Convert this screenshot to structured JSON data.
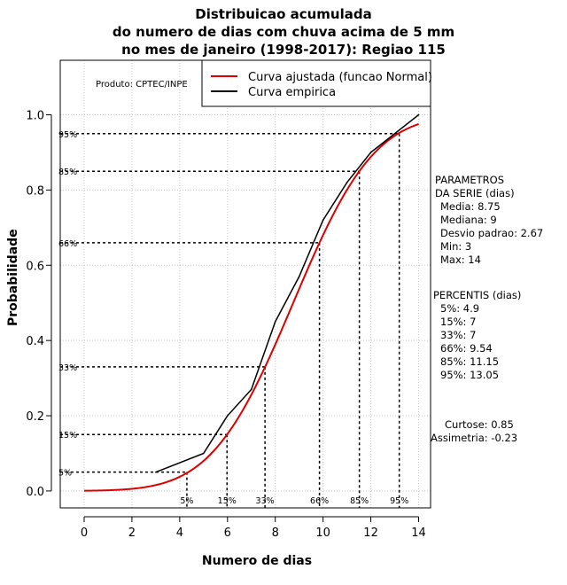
{
  "chart_data": {
    "type": "line",
    "title_lines": [
      "Distribuicao acumulada",
      "do numero de dias com chuva acima de 5 mm",
      "no mes de janeiro (1998-2017): Regiao 115"
    ],
    "xlabel": "Numero de dias",
    "ylabel": "Probabilidade",
    "xlim": [
      -1,
      14.5
    ],
    "ylim": [
      -0.045,
      1.145
    ],
    "x_ticks": [
      0,
      2,
      4,
      6,
      8,
      10,
      12,
      14
    ],
    "y_ticks": [
      0.0,
      0.2,
      0.4,
      0.6,
      0.8,
      1.0
    ],
    "y_tick_labels": [
      "0.0",
      "0.2",
      "0.4",
      "0.6",
      "0.8",
      "1.0"
    ],
    "grid": true,
    "produto": "Produto: CPTEC/INPE",
    "legend": {
      "position": "top-right",
      "entries": [
        {
          "label": "Curva ajustada (funcao Normal)",
          "color": "#dd0000"
        },
        {
          "label": "Curva empirica",
          "color": "#000000"
        }
      ]
    },
    "normal_fit": {
      "mean": 8.75,
      "sd": 2.67,
      "x_from": 0,
      "x_to": 14,
      "color": "#dd0000"
    },
    "series": [
      {
        "name": "Curva empirica",
        "color": "#000000",
        "x": [
          3,
          5,
          6,
          7,
          8,
          9,
          10,
          11,
          12,
          13,
          14
        ],
        "y": [
          0.05,
          0.1,
          0.2,
          0.27,
          0.45,
          0.57,
          0.72,
          0.82,
          0.9,
          0.95,
          1.0
        ]
      }
    ],
    "percentiles": [
      {
        "label": "5%",
        "p": 0.05,
        "x": 4.3
      },
      {
        "label": "15%",
        "p": 0.15,
        "x": 5.98
      },
      {
        "label": "33%",
        "p": 0.33,
        "x": 7.57
      },
      {
        "label": "66%",
        "p": 0.66,
        "x": 9.85
      },
      {
        "label": "85%",
        "p": 0.85,
        "x": 11.52
      },
      {
        "label": "95%",
        "p": 0.95,
        "x": 13.19
      }
    ]
  },
  "sidebar": {
    "parametros_title_1": "PARAMETROS",
    "parametros_title_2": "DA SERIE (dias)",
    "media": "Media: 8.75",
    "mediana": "Mediana: 9",
    "desvio": "Desvio padrao: 2.67",
    "min": "Min: 3",
    "max": "Max: 14",
    "percentis_title": "PERCENTIS (dias)",
    "p5": "5%: 4.9",
    "p15": "15%: 7",
    "p33": "33%: 7",
    "p66": "66%: 9.54",
    "p85": "85%: 11.15",
    "p95": "95%: 13.05",
    "curtose": "Curtose: 0.85",
    "assimetria": "Assimetria: -0.23"
  }
}
